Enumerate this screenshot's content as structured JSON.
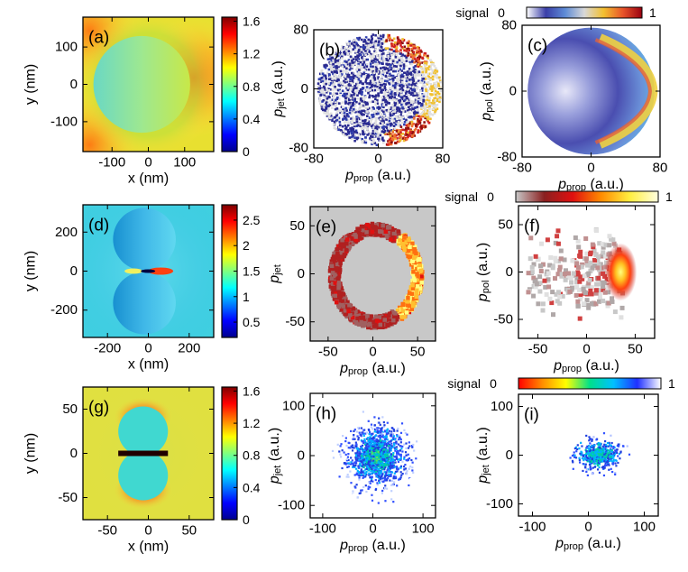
{
  "figure": {
    "colormaps": {
      "jet": [
        "#00008f",
        "#0000ff",
        "#007fff",
        "#00ffff",
        "#7fff7f",
        "#ffff00",
        "#ff7f00",
        "#ff0000",
        "#7f0000"
      ],
      "bluered": [
        "#ffffff",
        "#3a3fa8",
        "#5e8bd6",
        "#d8d8d8",
        "#f3c030",
        "#e8542a",
        "#9a0010"
      ],
      "heat": [
        "#c8c8c8",
        "#8a2020",
        "#e01010",
        "#ff8c00",
        "#ffee40",
        "#ffffe0"
      ],
      "rainbow_r": [
        "#ff0000",
        "#ff8c00",
        "#ffff00",
        "#00e08a",
        "#00c0ff",
        "#2030ff",
        "#ffffff"
      ]
    },
    "signal_bars": [
      {
        "label": "signal",
        "min": "0",
        "max": "1",
        "cmap": "bluered"
      },
      {
        "label": "signal",
        "min": "0",
        "max": "1",
        "cmap": "heat"
      },
      {
        "label": "signal",
        "min": "0",
        "max": "1",
        "cmap": "rainbow_r"
      }
    ]
  },
  "chart_data": [
    {
      "panel": "(a)",
      "type": "heatmap",
      "subject": "single-sphere near-field map",
      "xlabel": "x (nm)",
      "ylabel": "y (nm)",
      "xticks": [
        "-100",
        "0",
        "100"
      ],
      "yticks": [
        "100",
        "0",
        "-100"
      ],
      "xlim": [
        -180,
        180
      ],
      "ylim": [
        -180,
        180
      ],
      "colorbar": {
        "ticks": [
          "1.6",
          "1.2",
          "0.8",
          "0.4",
          "0"
        ],
        "range": [
          0,
          1.65
        ],
        "cmap": "jet"
      }
    },
    {
      "panel": "(b)",
      "type": "heatmap",
      "subject": "momentum map, crescent on +p_prop side",
      "xlabel": "p_prop (a.u.)",
      "ylabel": "p_jet (a.u.)",
      "xticks": [
        "-80",
        "0",
        "80"
      ],
      "yticks": [
        "80",
        "0",
        "-80"
      ],
      "xlim": [
        -80,
        80
      ],
      "ylim": [
        -80,
        80
      ],
      "cmap": "bluered"
    },
    {
      "panel": "(c)",
      "type": "heatmap",
      "subject": "simulated momentum map",
      "xlabel": "p_prop (a.u.)",
      "ylabel": "p_pol (a.u.)",
      "xticks": [
        "-80",
        "0",
        "80"
      ],
      "yticks": [
        "80",
        "0",
        "-80"
      ],
      "xlim": [
        -80,
        80
      ],
      "ylim": [
        -80,
        80
      ],
      "cmap": "bluered"
    },
    {
      "panel": "(d)",
      "type": "heatmap",
      "subject": "sphere-dimer near-field map",
      "xlabel": "x (nm)",
      "ylabel": "y (nm)",
      "xticks": [
        "-200",
        "0",
        "200"
      ],
      "yticks": [
        "200",
        "0",
        "-200"
      ],
      "xlim": [
        -320,
        320
      ],
      "ylim": [
        -340,
        340
      ],
      "colorbar": {
        "ticks": [
          "2.5",
          "2",
          "1.5",
          "1",
          "0.5"
        ],
        "range": [
          0.2,
          2.8
        ],
        "cmap": "jet"
      }
    },
    {
      "panel": "(e)",
      "type": "heatmap",
      "subject": "momentum map, dimer",
      "xlabel": "p_prop (a.u.)",
      "ylabel": "p_jet",
      "xticks": [
        "-50",
        "0",
        "50"
      ],
      "yticks": [
        "50",
        "0",
        "-50"
      ],
      "xlim": [
        -70,
        70
      ],
      "ylim": [
        -70,
        70
      ],
      "cmap": "heat"
    },
    {
      "panel": "(f)",
      "type": "heatmap",
      "subject": "simulated momentum map, dimer",
      "xlabel": "p_prop (a.u.)",
      "ylabel": "p_pol (a.u.)",
      "xticks": [
        "-50",
        "0",
        "50"
      ],
      "yticks": [
        "50",
        "0",
        "-50"
      ],
      "xlim": [
        -70,
        70
      ],
      "ylim": [
        -70,
        70
      ],
      "cmap": "heat"
    },
    {
      "panel": "(g)",
      "type": "heatmap",
      "subject": "small dimer near-field map",
      "xlabel": "x (nm)",
      "ylabel": "y (nm)",
      "xticks": [
        "-50",
        "0",
        "50"
      ],
      "yticks": [
        "50",
        "0",
        "-50"
      ],
      "xlim": [
        -80,
        80
      ],
      "ylim": [
        -75,
        75
      ],
      "colorbar": {
        "ticks": [
          "1.6",
          "1.2",
          "0.8",
          "0.4",
          "0"
        ],
        "range": [
          0,
          1.65
        ],
        "cmap": "jet"
      }
    },
    {
      "panel": "(h)",
      "type": "heatmap",
      "subject": "momentum map, small dimer",
      "xlabel": "p_prop (a.u.)",
      "ylabel": "p_jet (a.u.)",
      "xticks": [
        "-100",
        "0",
        "100"
      ],
      "yticks": [
        "100",
        "0",
        "-100"
      ],
      "xlim": [
        -125,
        125
      ],
      "ylim": [
        -125,
        125
      ],
      "cmap": "rainbow_r"
    },
    {
      "panel": "(i)",
      "type": "heatmap",
      "subject": "simulated momentum map, small dimer",
      "xlabel": "p_prop (a.u.)",
      "ylabel": "p_jet (a.u.)",
      "xticks": [
        "-100",
        "0",
        "100"
      ],
      "yticks": [
        "100",
        "0",
        "-100"
      ],
      "xlim": [
        -125,
        125
      ],
      "ylim": [
        -125,
        125
      ],
      "cmap": "rainbow_r"
    }
  ]
}
